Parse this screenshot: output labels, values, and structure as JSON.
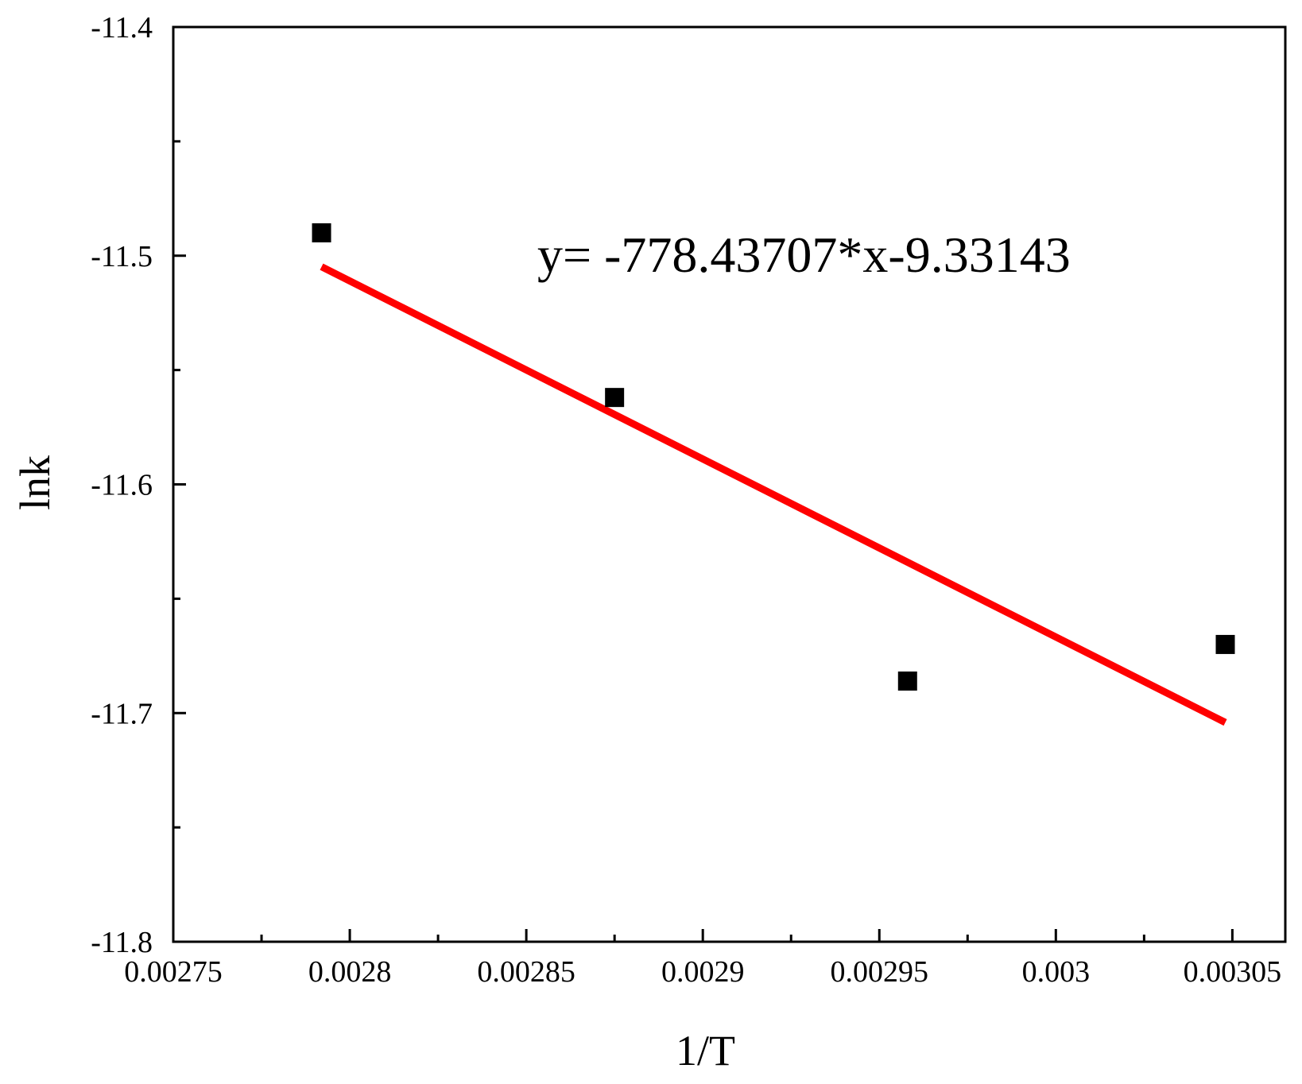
{
  "chart_data": {
    "type": "scatter",
    "xlabel": "1/T",
    "ylabel": "lnk",
    "xlim": [
      0.00275,
      0.003065
    ],
    "ylim": [
      -11.8,
      -11.4
    ],
    "x_ticks": [
      0.00275,
      0.0028,
      0.00285,
      0.0029,
      0.00295,
      0.003,
      0.00305
    ],
    "x_tick_labels": [
      "0.00275",
      "0.0028",
      "0.00285",
      "0.0029",
      "0.00295",
      "0.003",
      "0.00305"
    ],
    "y_ticks": [
      -11.8,
      -11.7,
      -11.6,
      -11.5,
      -11.4
    ],
    "y_tick_labels": [
      "-11.8",
      "-11.7",
      "-11.6",
      "-11.5",
      "-11.4"
    ],
    "grid": false,
    "series": [
      {
        "kind": "points",
        "marker": "square",
        "color": "#000000",
        "x": [
          0.002792,
          0.002875,
          0.002958,
          0.003048
        ],
        "y": [
          -11.49,
          -11.562,
          -11.686,
          -11.67
        ]
      },
      {
        "kind": "fit-line",
        "color": "#ff0000",
        "slope": -778.43707,
        "intercept": -9.33143,
        "x": [
          0.002792,
          0.003048
        ]
      }
    ],
    "annotations": [
      {
        "text": "y= -778.43707*x-9.33143"
      }
    ]
  }
}
